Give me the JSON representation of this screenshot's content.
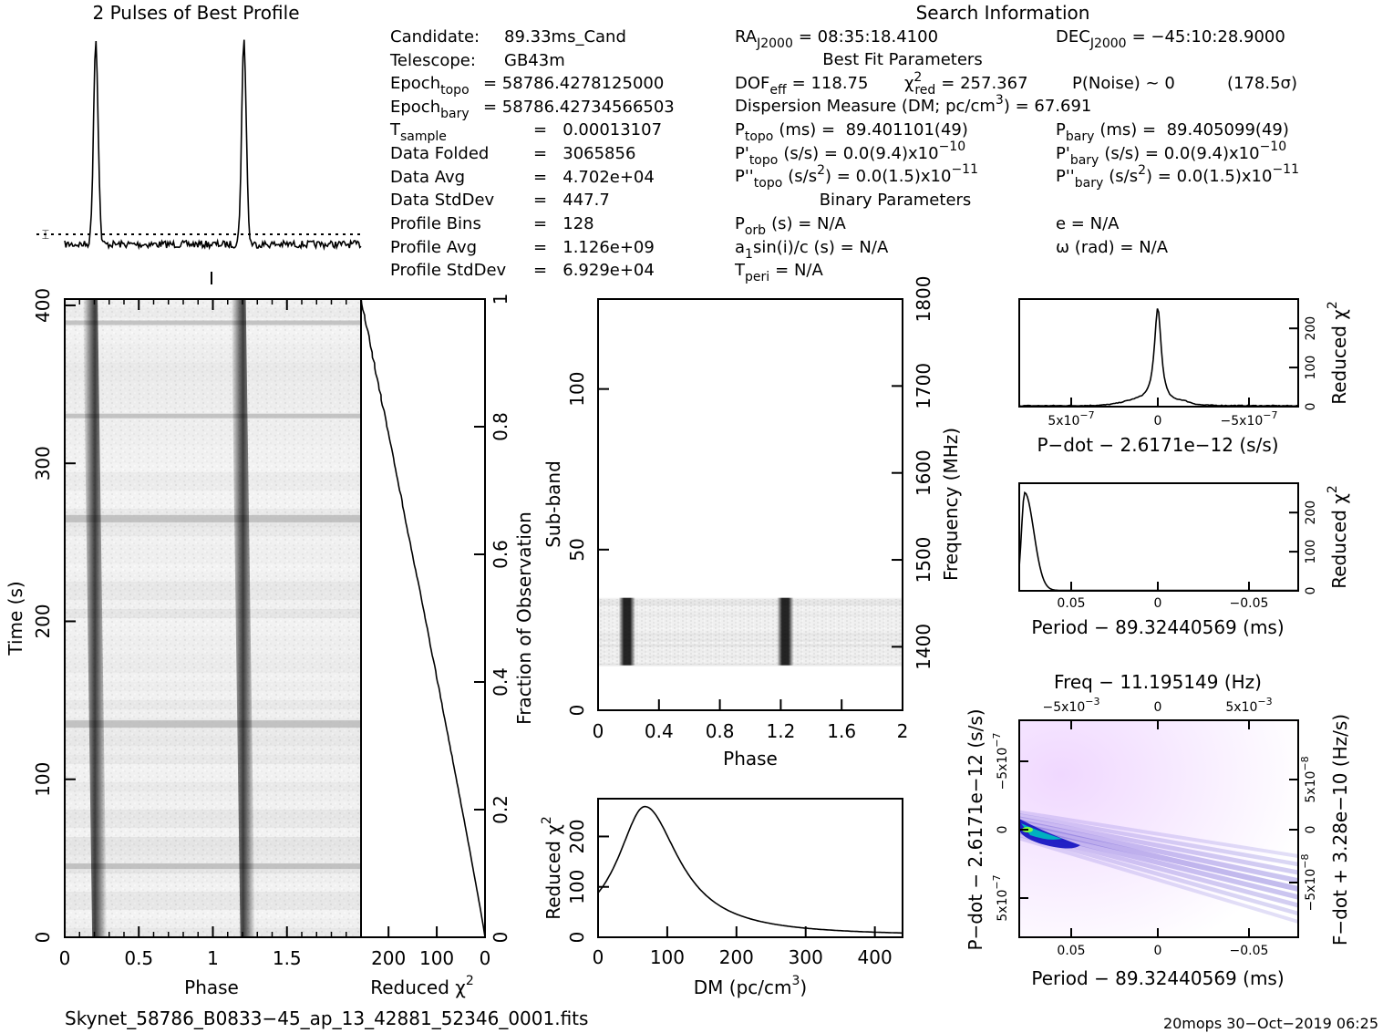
{
  "title_profile": "2 Pulses of Best Profile",
  "title_search": "Search Information",
  "candidate": {
    "rows": [
      {
        "label": "Candidate:",
        "value": "89.33ms_Cand"
      },
      {
        "label": "Telescope:",
        "value": "GB43m"
      },
      {
        "label": "Epoch",
        "sub": "topo",
        "value": "= 58786.4278125000"
      },
      {
        "label": "Epoch",
        "sub": "bary",
        "value": "= 58786.42734566503"
      },
      {
        "label": "T",
        "sub": "sample",
        "value": "=   0.00013107"
      },
      {
        "label": "Data Folded",
        "value": "=   3065856"
      },
      {
        "label": "Data Avg",
        "value": "=   4.702e+04"
      },
      {
        "label": "Data StdDev",
        "value": "=   447.7"
      },
      {
        "label": "Profile Bins",
        "value": "=   128"
      },
      {
        "label": "Profile Avg",
        "value": "=   1.126e+09"
      },
      {
        "label": "Profile StdDev",
        "value": "=   6.929e+04"
      }
    ]
  },
  "search": {
    "ra_label": "RA",
    "ra_sub": "J2000",
    "ra_value": "= 08:35:18.4100",
    "dec_label": "DEC",
    "dec_sub": "J2000",
    "dec_value": "= −45:10:28.9000",
    "best_fit_title": "Best Fit Parameters",
    "dof_label": "DOF",
    "dof_sub": "eff",
    "dof_value": "= 118.75",
    "chi_label": "χ",
    "chi_sup": "2",
    "chi_sub": "red",
    "chi_value": "= 257.367",
    "pnoise": "P(Noise) ~ 0",
    "sigma": "(178.5σ)",
    "dm_line": "Dispersion Measure (DM; pc/cm",
    "dm_sup": "3",
    "dm_value": ") = 67.691",
    "ptopo_label": "P",
    "ptopo_sub": "topo",
    "ptopo_value": "(ms) =  89.401101(49)",
    "pbary_label": "P",
    "pbary_sub": "bary",
    "pbary_value": "(ms) =  89.405099(49)",
    "pdtopo_label": "P'",
    "pdtopo_sub": "topo",
    "pdtopo_value": "(s/s) = 0.0(9.4)x10",
    "pdtopo_exp": "−10",
    "pdbary_label": "P'",
    "pdbary_sub": "bary",
    "pdbary_value": "(s/s) = 0.0(9.4)x10",
    "pdbary_exp": "−10",
    "pddtopo_label": "P''",
    "pddtopo_sub": "topo",
    "pddtopo_value": "(s/s",
    "pddtopo_value2": ") = 0.0(1.5)x10",
    "pddtopo_exp": "−11",
    "pddbary_label": "P''",
    "pddbary_sub": "bary",
    "pddbary_value": "(s/s",
    "pddbary_value2": ") = 0.0(1.5)x10",
    "pddbary_exp": "−11",
    "binary_title": "Binary Parameters",
    "porb_label": "P",
    "porb_sub": "orb",
    "porb_value": "(s) = N/A",
    "e_value": "e = N/A",
    "a1_label": "a",
    "a1_sub": "1",
    "a1_value": "sin(i)/c (s) = N/A",
    "omega_value": "ω (rad) = N/A",
    "tperi_label": "T",
    "tperi_sub": "peri",
    "tperi_value": "= N/A"
  },
  "footer": {
    "filename": "Skynet_58786_B0833−45_ap_13_42881_52346_0001.fits",
    "stamp": "20mops 30−Oct−2019 06:25"
  },
  "chart_data": [
    {
      "id": "profile",
      "type": "line",
      "title": "2 Pulses of Best Profile",
      "xlabel": "",
      "ylabel": "",
      "x_range": [
        0,
        2
      ],
      "peaks_phase": [
        0.21,
        1.21
      ],
      "baseline_dotted": true
    },
    {
      "id": "time_phase",
      "type": "heatmap",
      "xlabel": "Phase",
      "ylabel": "Time (s)",
      "x_ticks": [
        "0",
        "0.5",
        "1",
        "1.5"
      ],
      "x_range": [
        0,
        2
      ],
      "y_ticks": [
        "0",
        "100",
        "200",
        "300",
        "400"
      ],
      "y_range": [
        0,
        404
      ],
      "pulse_phases": [
        0.21,
        1.21
      ]
    },
    {
      "id": "time_chi2",
      "type": "line",
      "xlabel": "Reduced χ",
      "xlabel_sup": "2",
      "ylabel_right": "Fraction of Observation",
      "x_ticks": [
        "200",
        "100",
        "0"
      ],
      "x_range": [
        257,
        0
      ],
      "y_ticks_right": [
        "0",
        "0.2",
        "0.4",
        "0.6",
        "0.8",
        "1"
      ],
      "y_range": [
        0,
        1
      ]
    },
    {
      "id": "subband_phase",
      "type": "heatmap",
      "xlabel": "Phase",
      "ylabel": "Sub-band",
      "ylabel_right": "Frequency (MHz)",
      "x_ticks": [
        "0",
        "0.4",
        "0.8",
        "1.2",
        "1.6",
        "2"
      ],
      "x_range": [
        0,
        2
      ],
      "y_ticks": [
        "0",
        "50",
        "100"
      ],
      "y_range": [
        0,
        128
      ],
      "y_ticks_right": [
        "1400",
        "1500",
        "1600",
        "1700",
        "1800"
      ],
      "y_range_right": [
        1327,
        1800
      ],
      "filled_subbands": [
        14,
        35
      ],
      "pulse_phases": [
        0.19,
        1.23
      ]
    },
    {
      "id": "dm_chi2",
      "type": "line",
      "xlabel": "DM (pc/cm",
      "xlabel_sup": "3",
      "xlabel_end": ")",
      "ylabel": "Reduced χ",
      "ylabel_sup": "2",
      "x_ticks": [
        "0",
        "100",
        "200",
        "300",
        "400"
      ],
      "x_range": [
        0,
        440
      ],
      "y_ticks": [
        "0",
        "100",
        "200"
      ],
      "y_range": [
        0,
        275
      ],
      "peak_dm": 67.691,
      "peak_chi2": 257.367
    },
    {
      "id": "pdot_chi2",
      "type": "line",
      "xlabel": "P−dot − 2.6171e−12 (s/s)",
      "ylabel_right": "Reduced χ",
      "ylabel_sup": "2",
      "x_ticks": [
        "5x10",
        "0",
        "−5x10"
      ],
      "x_tick_exp": "−7",
      "y_ticks": [
        "0",
        "100",
        "200"
      ],
      "y_range": [
        0,
        275
      ]
    },
    {
      "id": "period_chi2",
      "type": "line",
      "xlabel": "Period − 89.32440569 (ms)",
      "ylabel_right": "Reduced χ",
      "ylabel_sup": "2",
      "x_ticks": [
        "0.05",
        "0",
        "−0.05"
      ],
      "y_ticks": [
        "0",
        "100",
        "200"
      ],
      "y_range": [
        0,
        275
      ]
    },
    {
      "id": "p_pdot",
      "type": "heatmap",
      "title": "Freq − 11.195149 (Hz)",
      "xlabel": "Period − 89.32440569 (ms)",
      "ylabel": "P−dot − 2.6171e−12 (s/s)",
      "ylabel_right": "F−dot + 3.28e−10 (Hz/s)",
      "x_ticks": [
        "0.05",
        "0",
        "−0.05"
      ],
      "top_ticks": [
        "−5x10",
        "0",
        "5x10"
      ],
      "top_tick_exp": "−3",
      "y_ticks": [
        "−5x10",
        "0",
        "5x10"
      ],
      "y_tick_exp": "−7",
      "y_ticks_right": [
        "5x10",
        "0",
        "−5x10"
      ],
      "y_right_tick_exp": "−8",
      "colors": [
        "#ffffff",
        "#e0b0f0",
        "#1010c0",
        "#00c0c0",
        "#80ff40"
      ]
    }
  ]
}
